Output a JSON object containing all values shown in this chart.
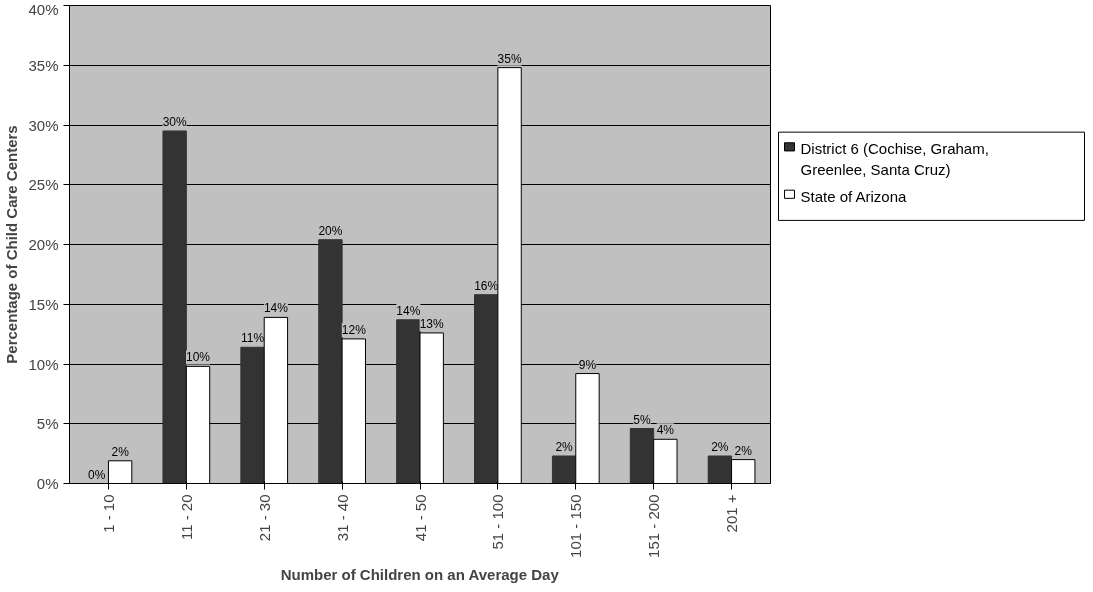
{
  "chart_data": {
    "type": "bar",
    "xlabel": "Number of Children on an Average Day",
    "ylabel": "Percentage of Child Care Centers",
    "categories": [
      "1 - 10",
      "11 - 20",
      "21 - 30",
      "31 - 40",
      "41 - 50",
      "51 - 100",
      "101 - 150",
      "151 - 200",
      "201 +"
    ],
    "series": [
      {
        "name": "District 6 (Cochise, Graham, Greenlee, Santa Cruz)",
        "color": "#333333",
        "values": [
          0,
          29.5,
          11.4,
          20.4,
          13.7,
          15.8,
          2.3,
          4.6,
          2.3
        ],
        "value_labels": [
          "0%",
          "30%",
          "11%",
          "20%",
          "14%",
          "16%",
          "2%",
          "5%",
          "2%"
        ]
      },
      {
        "name": "State of Arizona",
        "color": "#ffffff",
        "values": [
          1.9,
          9.8,
          13.9,
          12.1,
          12.6,
          34.8,
          9.2,
          3.7,
          2.0
        ],
        "value_labels": [
          "2%",
          "10%",
          "14%",
          "12%",
          "13%",
          "35%",
          "9%",
          "4%",
          "2%"
        ]
      }
    ],
    "ylim": [
      0,
      40
    ],
    "yticks": [
      {
        "value": 0,
        "label": "0%"
      },
      {
        "value": 5,
        "label": "5%"
      },
      {
        "value": 10,
        "label": "10%"
      },
      {
        "value": 15,
        "label": "15%"
      },
      {
        "value": 20,
        "label": "20%"
      },
      {
        "value": 25,
        "label": "25%"
      },
      {
        "value": 30,
        "label": "30%"
      },
      {
        "value": 35,
        "label": "35%"
      },
      {
        "value": 40,
        "label": "40%"
      }
    ],
    "grid": "y",
    "legend": "right"
  }
}
